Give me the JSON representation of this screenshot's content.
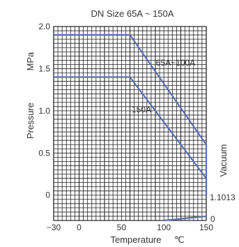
{
  "chart_data": {
    "type": "line",
    "title": "DN Size 65A ~ 150A",
    "xlabel": "Temperature",
    "xunit": "℃",
    "ylabel": "Pressure",
    "yunit": "MPa",
    "right_label": "Vacuum",
    "right_ticks": [
      "1.1013",
      "0"
    ],
    "xlim": [
      -30,
      150
    ],
    "ylim": [
      -0.3,
      2.0
    ],
    "x_ticks": [
      "-30",
      "0",
      "50",
      "100",
      "150"
    ],
    "y_ticks": [
      "2.0",
      "1.5",
      "1.0",
      "0.5",
      "0"
    ],
    "grid": true,
    "series": [
      {
        "name": "65A~100A",
        "x": [
          -30,
          60,
          150,
          150
        ],
        "y": [
          1.9,
          1.9,
          0.6,
          0.0
        ]
      },
      {
        "name": "150A",
        "x": [
          -30,
          60,
          150,
          150
        ],
        "y": [
          1.4,
          1.4,
          0.2,
          0.0
        ]
      },
      {
        "name": "",
        "x": [
          100,
          150,
          150
        ],
        "y": [
          -0.3,
          -0.25,
          -0.25
        ]
      }
    ],
    "colors": {
      "line": "#5a6fb4",
      "grid": "#222222"
    }
  }
}
